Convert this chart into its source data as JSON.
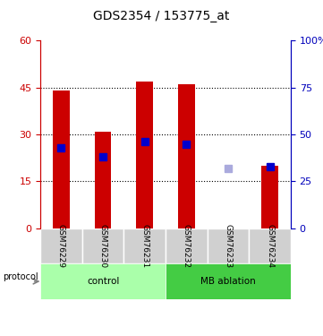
{
  "title": "GDS2354 / 153775_at",
  "samples": [
    "GSM76229",
    "GSM76230",
    "GSM76231",
    "GSM76232",
    "GSM76233",
    "GSM76234"
  ],
  "bar_values": [
    44,
    31,
    47,
    46,
    null,
    20
  ],
  "bar_colors": [
    "#cc0000",
    "#cc0000",
    "#cc0000",
    "#cc0000",
    "#ffbbbb",
    "#cc0000"
  ],
  "rank_values": [
    43,
    38,
    46,
    45,
    32,
    33
  ],
  "rank_colors": [
    "#0000cc",
    "#0000cc",
    "#0000cc",
    "#0000cc",
    "#aaaadd",
    "#0000cc"
  ],
  "groups": [
    {
      "label": "control",
      "start": 0,
      "end": 3,
      "color": "#aaffaa"
    },
    {
      "label": "MB ablation",
      "start": 3,
      "end": 6,
      "color": "#44cc44"
    }
  ],
  "ylim_left": [
    0,
    60
  ],
  "ylim_right": [
    0,
    100
  ],
  "yticks_left": [
    0,
    15,
    30,
    45,
    60
  ],
  "yticks_right": [
    0,
    25,
    50,
    75,
    100
  ],
  "left_axis_color": "#cc0000",
  "right_axis_color": "#0000bb",
  "dotted_lines": [
    15,
    30,
    45
  ],
  "protocol_label": "protocol",
  "bar_width": 0.4,
  "rank_marker_size": 6
}
